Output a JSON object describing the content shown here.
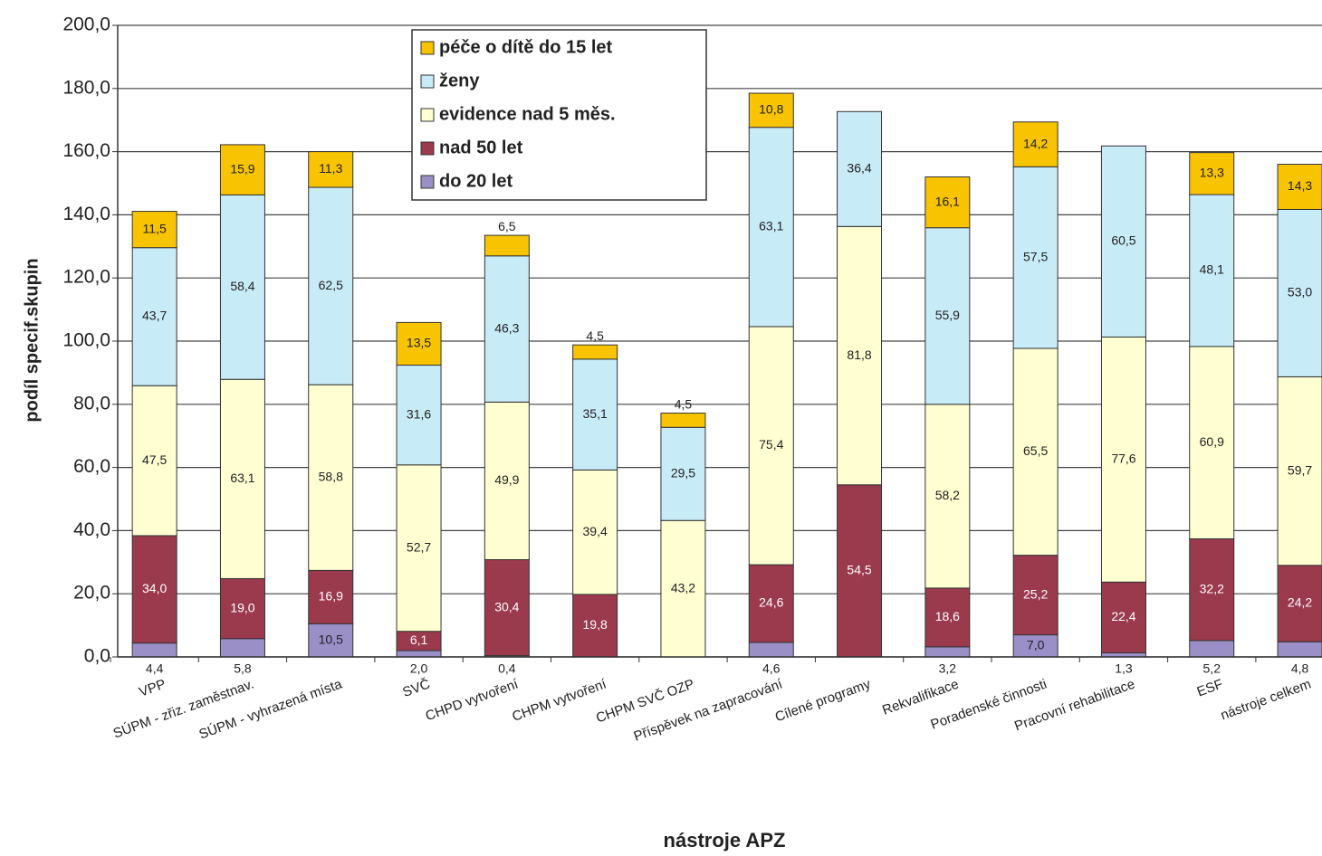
{
  "chart_data": {
    "type": "stacked_bar",
    "categories": [
      "VPP",
      "SÚPM - zřiz. zaměstnav.",
      "SÚPM - vyhrazená místa",
      "SVČ",
      "CHPD vytvoření",
      "CHPM vytvoření",
      "CHPM SVČ OZP",
      "Příspěvek na zapracování",
      "Cílené programy",
      "Rekvalifikace",
      "Poradenské činnosti",
      "Pracovní rehabilitace",
      "ESF",
      "nástroje celkem"
    ],
    "series": [
      {
        "name": "do 20 let",
        "color": "#9b8fc8",
        "values": [
          4.4,
          5.8,
          10.5,
          2.0,
          0.4,
          null,
          null,
          4.6,
          null,
          3.2,
          7.0,
          1.3,
          5.2,
          4.8
        ],
        "value_labels": [
          "4,4",
          "5,8",
          "10,5",
          "2,0",
          "0,4",
          null,
          null,
          "4,6",
          null,
          "3,2",
          "7,0",
          "1,3",
          "5,2",
          "4,8"
        ]
      },
      {
        "name": "nad 50 let",
        "color": "#9b3a4d",
        "values": [
          34.0,
          19.0,
          16.9,
          6.1,
          30.4,
          19.8,
          null,
          24.6,
          54.5,
          18.6,
          25.2,
          22.4,
          32.2,
          24.2
        ],
        "value_labels": [
          "34,0",
          "19,0",
          "16,9",
          "6,1",
          "30,4",
          "19,8",
          null,
          "24,6",
          "54,5",
          "18,6",
          "25,2",
          "22,4",
          "32,2",
          "24,2"
        ]
      },
      {
        "name": "evidence nad 5 měs.",
        "color": "#ffffd2",
        "values": [
          47.5,
          63.1,
          58.8,
          52.7,
          49.9,
          39.4,
          43.2,
          75.4,
          81.8,
          58.2,
          65.5,
          77.6,
          60.9,
          59.7
        ],
        "value_labels": [
          "47,5",
          "63,1",
          "58,8",
          "52,7",
          "49,9",
          "39,4",
          "43,2",
          "75,4",
          "81,8",
          "58,2",
          "65,5",
          "77,6",
          "60,9",
          "59,7"
        ]
      },
      {
        "name": "ženy",
        "color": "#c8ebf8",
        "values": [
          43.7,
          58.4,
          62.5,
          31.6,
          46.3,
          35.1,
          29.5,
          63.1,
          36.4,
          55.9,
          57.5,
          60.5,
          48.1,
          53.0
        ],
        "value_labels": [
          "43,7",
          "58,4",
          "62,5",
          "31,6",
          "46,3",
          "35,1",
          "29,5",
          "63,1",
          "36,4",
          "55,9",
          "57,5",
          "60,5",
          "48,1",
          "53,0"
        ]
      },
      {
        "name": "péče o dítě do 15 let",
        "color": "#f8c300",
        "values": [
          11.5,
          15.9,
          11.3,
          13.5,
          6.5,
          4.5,
          4.5,
          10.8,
          null,
          16.1,
          14.2,
          null,
          13.3,
          14.3
        ],
        "value_labels": [
          "11,5",
          "15,9",
          "11,3",
          "13,5",
          "6,5",
          "4,5",
          "4,5",
          "10,8",
          null,
          "16,1",
          "14,2",
          null,
          "13,3",
          "14,3"
        ]
      }
    ],
    "y_label": "podíl specif.skupin",
    "x_label": "nástroje APZ",
    "ylim": [
      0,
      200
    ],
    "yticks": [
      {
        "value": 0,
        "label": "0,0"
      },
      {
        "value": 20,
        "label": "20,0"
      },
      {
        "value": 40,
        "label": "40,0"
      },
      {
        "value": 60,
        "label": "60,0"
      },
      {
        "value": 80,
        "label": "80,0"
      },
      {
        "value": 100,
        "label": "100,0"
      },
      {
        "value": 120,
        "label": "120,0"
      },
      {
        "value": 140,
        "label": "140,0"
      },
      {
        "value": 160,
        "label": "160,0"
      },
      {
        "value": 180,
        "label": "180,0"
      },
      {
        "value": 200,
        "label": "200,0"
      }
    ],
    "grid": true,
    "legend": "top"
  }
}
